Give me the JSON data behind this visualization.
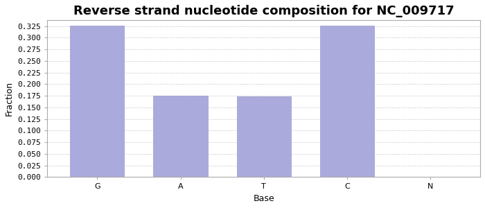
{
  "title": "Reverse strand nucleotide composition for NC_009717",
  "xlabel": "Base",
  "ylabel": "Fraction",
  "categories": [
    "G",
    "A",
    "T",
    "C",
    "N"
  ],
  "values": [
    0.326,
    0.175,
    0.174,
    0.326,
    0.0
  ],
  "bar_color": "#aaaadd",
  "bar_edgecolor": "#9999cc",
  "ylim": [
    0.0,
    0.3375
  ],
  "yticks": [
    0.0,
    0.025,
    0.05,
    0.075,
    0.1,
    0.125,
    0.15,
    0.175,
    0.2,
    0.225,
    0.25,
    0.275,
    0.3,
    0.325
  ],
  "title_fontsize": 13,
  "axis_fontsize": 9,
  "tick_fontsize": 8,
  "grid_color": "#bbbbbb",
  "grid_linestyle": ":",
  "bg_color": "#ffffff",
  "fig_bg_color": "#ffffff",
  "bar_width": 0.65
}
